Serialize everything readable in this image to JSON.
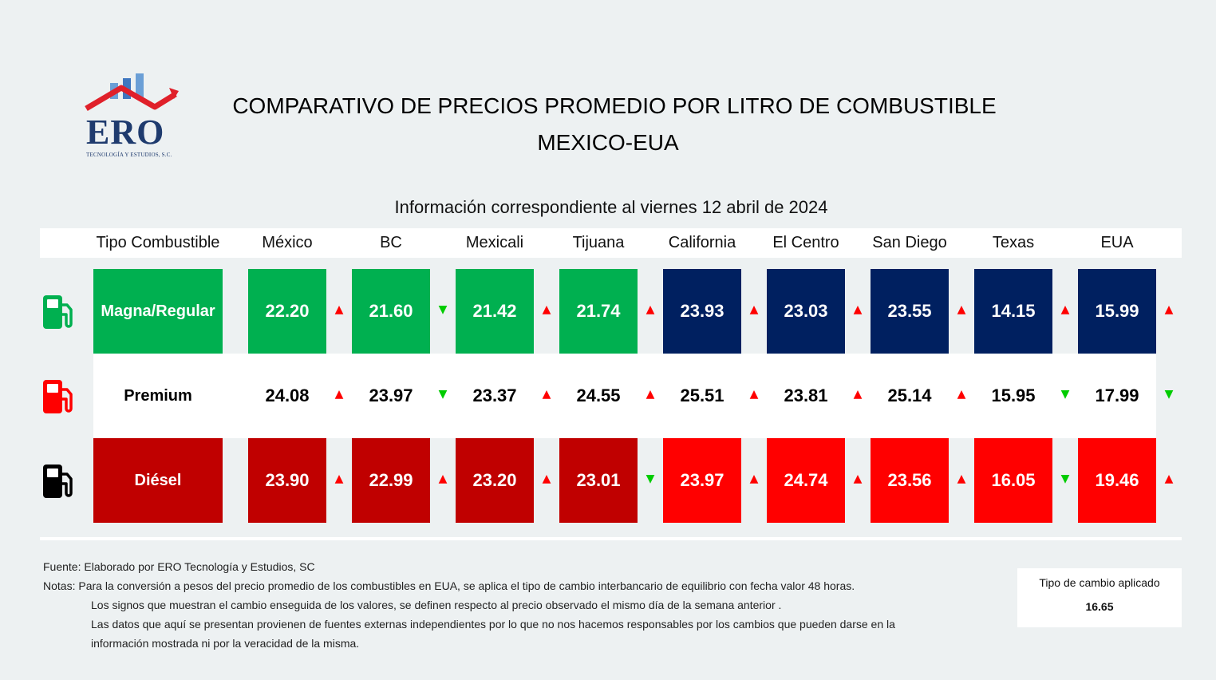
{
  "logo": {
    "name": "ERO",
    "subtitle": "TECNOLOGÍA Y ESTUDIOS, S.C."
  },
  "title_line1": "COMPARATIVO DE PRECIOS PROMEDIO POR LITRO DE COMBUSTIBLE",
  "title_line2": "MEXICO-EUA",
  "date_info": "Información correspondiente al viernes 12 abril de 2024",
  "colors": {
    "mx_green": "#00b050",
    "us_blue": "#002060",
    "mx_dark_red": "#c00000",
    "us_red": "#ff0000",
    "up": "#ff0000",
    "down": "#00cc00"
  },
  "chart_data": {
    "type": "table",
    "header_label": "Tipo Combustible",
    "columns": [
      "México",
      "BC",
      "Mexicali",
      "Tijuana",
      "California",
      "El Centro",
      "San Diego",
      "Texas",
      "EUA"
    ],
    "rows": [
      {
        "fuel": "Magna/Regular",
        "icon": "green-fuel-pump-icon",
        "values": [
          "22.20",
          "21.60",
          "21.42",
          "21.74",
          "23.93",
          "23.03",
          "23.55",
          "14.15",
          "15.99"
        ],
        "trend": [
          "up",
          "down",
          "up",
          "up",
          "up",
          "up",
          "up",
          "up",
          "up"
        ]
      },
      {
        "fuel": "Premium",
        "icon": "red-fuel-pump-icon",
        "values": [
          "24.08",
          "23.97",
          "23.37",
          "24.55",
          "25.51",
          "23.81",
          "25.14",
          "15.95",
          "17.99"
        ],
        "trend": [
          "up",
          "down",
          "up",
          "up",
          "up",
          "up",
          "up",
          "down",
          "down"
        ]
      },
      {
        "fuel": "Diésel",
        "icon": "black-fuel-pump-icon",
        "values": [
          "23.90",
          "22.99",
          "23.20",
          "23.01",
          "23.97",
          "24.74",
          "23.56",
          "16.05",
          "19.46"
        ],
        "trend": [
          "up",
          "up",
          "up",
          "down",
          "up",
          "up",
          "up",
          "down",
          "up"
        ]
      }
    ]
  },
  "notes": {
    "source": "Fuente: Elaborado por ERO Tecnología y Estudios, SC",
    "line1": "Notas:  Para la conversión a pesos del precio promedio de los combustibles en EUA, se aplica el tipo de cambio interbancario de equilibrio con fecha valor 48 horas.",
    "line2": "Los signos que muestran el cambio enseguida de los valores, se definen respecto al precio observado el mismo día de la semana anterior .",
    "line3": "Las datos que aquí se presentan provienen de fuentes externas independientes por lo que no nos hacemos responsables por los cambios que pueden darse en  la",
    "line4": "información mostrada ni por la veracidad de la misma."
  },
  "exchange_rate": {
    "label": "Tipo de cambio aplicado",
    "value": "16.65"
  }
}
